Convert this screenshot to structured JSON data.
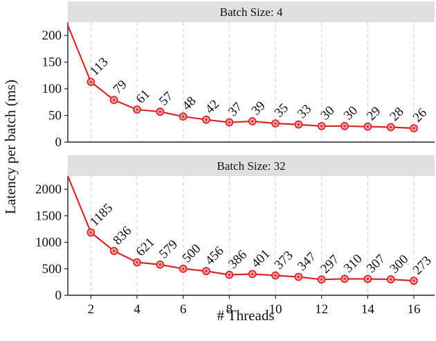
{
  "chart_data": {
    "type": "line",
    "xlabel": "# Threads",
    "ylabel": "Latency per batch (ms)",
    "xlim": [
      1,
      16.9
    ],
    "xticks": [
      2,
      4,
      6,
      8,
      10,
      12,
      14,
      16
    ],
    "grid": "vertical dashed",
    "line_color": "#d62728",
    "panel_header_color": "#e0e0e0",
    "panels": [
      {
        "title": "Batch Size: 4",
        "ylim": [
          0,
          225
        ],
        "yticks": [
          0,
          50,
          100,
          150,
          200
        ],
        "x": [
          1,
          2,
          3,
          4,
          5,
          6,
          7,
          8,
          9,
          10,
          11,
          12,
          13,
          14,
          15,
          16
        ],
        "values": [
          219,
          113,
          79,
          61,
          57,
          48,
          42,
          37,
          39,
          35,
          33,
          30,
          30,
          29,
          28,
          26
        ],
        "labels": [
          "113",
          "79",
          "61",
          "57",
          "48",
          "42",
          "37",
          "39",
          "35",
          "33",
          "30",
          "30",
          "29",
          "28",
          "26"
        ]
      },
      {
        "title": "Batch Size: 32",
        "ylim": [
          0,
          2250
        ],
        "yticks": [
          0,
          500,
          1000,
          1500,
          2000
        ],
        "x": [
          1,
          2,
          3,
          4,
          5,
          6,
          7,
          8,
          9,
          10,
          11,
          12,
          13,
          14,
          15,
          16
        ],
        "values": [
          2250,
          1185,
          836,
          621,
          579,
          500,
          456,
          386,
          401,
          373,
          347,
          297,
          310,
          307,
          300,
          273
        ],
        "labels": [
          "1185",
          "836",
          "621",
          "579",
          "500",
          "456",
          "386",
          "401",
          "373",
          "347",
          "297",
          "310",
          "307",
          "300",
          "273"
        ]
      }
    ]
  }
}
